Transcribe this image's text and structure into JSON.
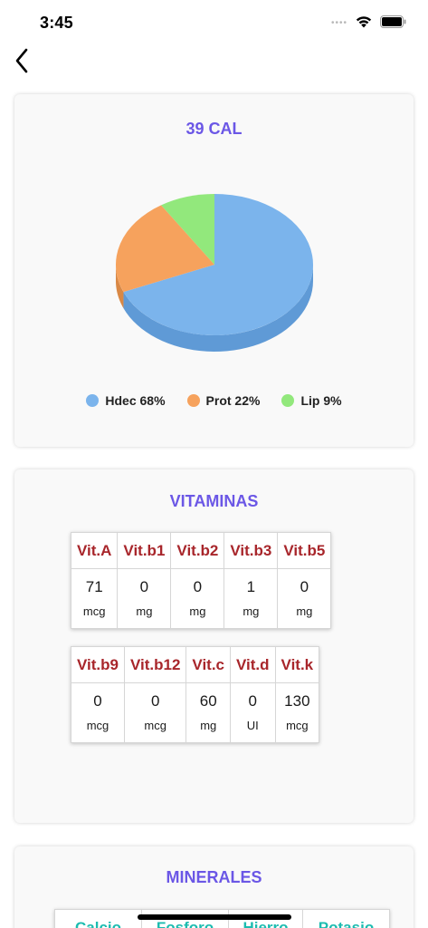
{
  "status_bar": {
    "time": "3:45",
    "signal": "••••"
  },
  "colors": {
    "title": "#6b57e6",
    "vitamin_header": "#a8262b",
    "mineral_header": "#1cbcb0",
    "hdec": "#7bb4ec",
    "prot": "#f6a25d",
    "lip": "#92e87c"
  },
  "calories": {
    "title": "39 CAL",
    "legend": [
      {
        "label": "Hdec 68%",
        "color": "#7bb4ec",
        "icon": "circle-dot"
      },
      {
        "label": "Prot 22%",
        "color": "#f6a25d",
        "icon": "circle-dot"
      },
      {
        "label": "Lip 9%",
        "color": "#92e87c",
        "icon": "circle-dot"
      }
    ]
  },
  "chart_data": {
    "type": "pie",
    "title": "39 CAL",
    "slices": [
      {
        "label": "Hdec",
        "value": 68,
        "color": "#7bb4ec",
        "side": "#5f9ad6"
      },
      {
        "label": "Prot",
        "value": 22,
        "color": "#f6a25d",
        "side": "#d98845"
      },
      {
        "label": "Lip",
        "value": 9,
        "color": "#92e87c",
        "side": "#74c95f"
      }
    ],
    "legend_position": "bottom"
  },
  "vitamins": {
    "title": "VITAMINAS",
    "row1": {
      "headers": [
        "Vit.A",
        "Vit.b1",
        "Vit.b2",
        "Vit.b3",
        "Vit.b5"
      ],
      "values": [
        "71",
        "0",
        "0",
        "1",
        "0"
      ],
      "units": [
        "mcg",
        "mg",
        "mg",
        "mg",
        "mg"
      ]
    },
    "row2": {
      "headers": [
        "Vit.b9",
        "Vit.b12",
        "Vit.c",
        "Vit.d",
        "Vit.k"
      ],
      "values": [
        "0",
        "0",
        "60",
        "0",
        "130"
      ],
      "units": [
        "mcg",
        "mcg",
        "mg",
        "UI",
        "mcg"
      ]
    }
  },
  "minerals": {
    "title": "MINERALES",
    "headers": [
      "Calcio",
      "Fosforo",
      "Hierro",
      "Potasio"
    ]
  }
}
